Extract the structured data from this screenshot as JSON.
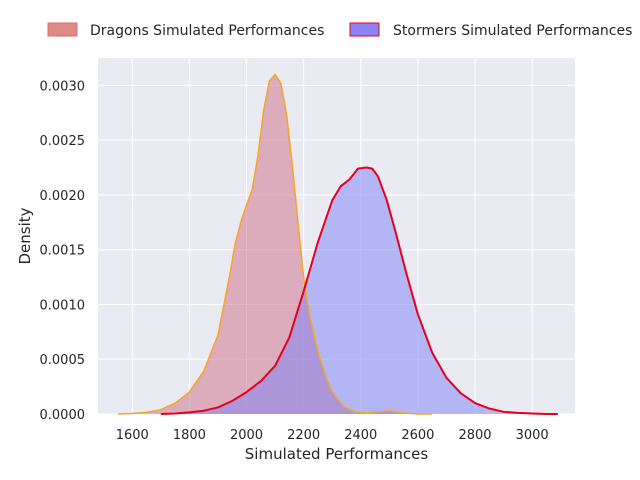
{
  "chart_data": {
    "type": "area",
    "title": "",
    "xlabel": "Simulated Performances",
    "ylabel": "Density",
    "xlim": [
      1480,
      3150
    ],
    "ylim": [
      0,
      0.00325
    ],
    "xticks": [
      1600,
      1800,
      2000,
      2200,
      2400,
      2600,
      2800,
      3000
    ],
    "xtick_labels": [
      "1600",
      "1800",
      "2000",
      "2200",
      "2400",
      "2600",
      "2800",
      "3000"
    ],
    "yticks": [
      0,
      0.0005,
      0.001,
      0.0015,
      0.002,
      0.0025,
      0.003
    ],
    "ytick_labels": [
      "0.0000",
      "0.0005",
      "0.0010",
      "0.0015",
      "0.0020",
      "0.0025",
      "0.0030"
    ],
    "grid": true,
    "legend_position": "top",
    "series": [
      {
        "name": "Dragons Simulated Performances",
        "fill_color": "#cd6b86",
        "legend_color": "#dd8a88",
        "line_color": "#f5a623",
        "x": [
          1550,
          1600,
          1650,
          1700,
          1750,
          1800,
          1850,
          1900,
          1940,
          1960,
          1980,
          2000,
          2020,
          2040,
          2060,
          2080,
          2100,
          2120,
          2140,
          2160,
          2180,
          2200,
          2220,
          2250,
          2280,
          2300,
          2340,
          2380,
          2420,
          2460,
          2500,
          2550,
          2600,
          2650
        ],
        "y": [
          0.0,
          5e-06,
          1.5e-05,
          4e-05,
          0.0001,
          0.0002,
          0.00039,
          0.00072,
          0.00125,
          0.00155,
          0.00175,
          0.00191,
          0.00205,
          0.00236,
          0.00277,
          0.00304,
          0.0031,
          0.00302,
          0.00274,
          0.00228,
          0.00175,
          0.00125,
          0.00091,
          0.00057,
          0.00032,
          0.0002,
          7e-05,
          2e-05,
          1e-05,
          2e-05,
          3e-05,
          1e-05,
          0.0,
          0.0
        ]
      },
      {
        "name": "Stormers Simulated Performances",
        "fill_color": "#7b7ff5",
        "legend_color": "#8b82f5",
        "line_color": "#e8001a",
        "x": [
          1700,
          1750,
          1800,
          1850,
          1900,
          1950,
          2000,
          2050,
          2100,
          2150,
          2200,
          2250,
          2300,
          2330,
          2360,
          2390,
          2420,
          2440,
          2460,
          2490,
          2520,
          2560,
          2600,
          2650,
          2700,
          2750,
          2800,
          2850,
          2900,
          2950,
          3000,
          3050,
          3090
        ],
        "y": [
          0.0,
          5e-06,
          1.5e-05,
          3e-05,
          6e-05,
          0.00012,
          0.0002,
          0.0003,
          0.00044,
          0.0007,
          0.00112,
          0.00157,
          0.00195,
          0.00208,
          0.00214,
          0.00224,
          0.00225,
          0.00224,
          0.00217,
          0.00196,
          0.00168,
          0.00128,
          0.00091,
          0.00056,
          0.00033,
          0.00019,
          0.0001,
          5e-05,
          2e-05,
          1e-05,
          5e-06,
          0.0,
          0.0
        ]
      }
    ]
  }
}
